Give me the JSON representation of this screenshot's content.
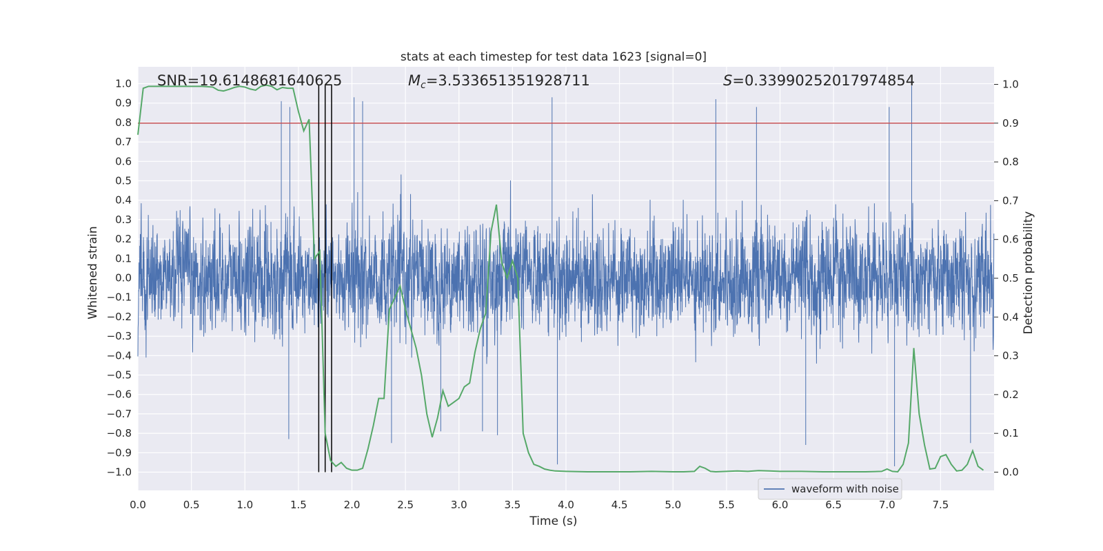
{
  "chart_data": {
    "type": "line",
    "title": "stats at each timestep for test data 1623 [signal=0]",
    "xlabel": "Time (s)",
    "ylabel": "Whitened strain",
    "y2label": "Detection probability",
    "xlim": [
      0.0,
      8.0
    ],
    "ylim": [
      -1.1,
      1.1
    ],
    "y2lim": [
      -0.05,
      1.05
    ],
    "xticks": [
      "0.0",
      "0.5",
      "1.0",
      "1.5",
      "2.0",
      "2.5",
      "3.0",
      "3.5",
      "4.0",
      "4.5",
      "5.0",
      "5.5",
      "6.0",
      "6.5",
      "7.0",
      "7.5"
    ],
    "yticks": [
      "1.0",
      "0.9",
      "0.8",
      "0.7",
      "0.6",
      "0.5",
      "0.4",
      "0.3",
      "0.2",
      "0.1",
      "0.0",
      "−0.1",
      "−0.2",
      "−0.3",
      "−0.4",
      "−0.5",
      "−0.6",
      "−0.7",
      "−0.8",
      "−0.9",
      "−1.0"
    ],
    "y2ticks": [
      "1.0",
      "0.9",
      "0.8",
      "0.7",
      "0.6",
      "0.5",
      "0.4",
      "0.3",
      "0.2",
      "0.1",
      "0.0"
    ],
    "grid": true,
    "legend": {
      "placement": "bottom-right",
      "entries": [
        "waveform with noise"
      ]
    },
    "annotations": {
      "snr": "SNR=19.6148681640625",
      "mc_symbol": "M",
      "mc_sub": "c",
      "mc_value": "=3.533651351928711",
      "s_symbol": "S",
      "s_value": "=0.33990252017974854"
    },
    "threshold_y2": 0.9,
    "vertical_markers_x": [
      1.69,
      1.75,
      1.81
    ],
    "series": [
      {
        "name": "waveform with noise",
        "color": "#4c72b0",
        "noise_envelope": {
          "typical_abs": 0.35,
          "peak_abs": 1.0
        },
        "notable_peaks": [
          {
            "x": 1.34,
            "y": 0.91
          },
          {
            "x": 1.42,
            "y": 0.88
          },
          {
            "x": 1.41,
            "y": -0.83
          },
          {
            "x": 2.02,
            "y": 0.93
          },
          {
            "x": 2.1,
            "y": 0.91
          },
          {
            "x": 2.37,
            "y": -0.85
          },
          {
            "x": 2.83,
            "y": -0.79
          },
          {
            "x": 3.22,
            "y": -0.79
          },
          {
            "x": 3.36,
            "y": -0.81
          },
          {
            "x": 3.87,
            "y": 0.93
          },
          {
            "x": 3.92,
            "y": -0.96
          },
          {
            "x": 5.4,
            "y": 0.92
          },
          {
            "x": 5.78,
            "y": 0.88
          },
          {
            "x": 6.24,
            "y": -0.86
          },
          {
            "x": 7.02,
            "y": 0.88
          },
          {
            "x": 7.07,
            "y": -0.97
          },
          {
            "x": 7.23,
            "y": 0.99
          },
          {
            "x": 7.78,
            "y": -0.85
          }
        ]
      },
      {
        "name": "detection probability",
        "color": "#55a868",
        "axis": "y2",
        "x": [
          0.0,
          0.05,
          0.1,
          0.2,
          0.3,
          0.4,
          0.5,
          0.6,
          0.7,
          0.75,
          0.8,
          0.85,
          0.9,
          0.95,
          1.0,
          1.05,
          1.1,
          1.15,
          1.2,
          1.25,
          1.3,
          1.35,
          1.4,
          1.45,
          1.5,
          1.55,
          1.6,
          1.65,
          1.7,
          1.75,
          1.8,
          1.85,
          1.9,
          1.95,
          2.0,
          2.05,
          2.1,
          2.15,
          2.2,
          2.25,
          2.3,
          2.35,
          2.4,
          2.45,
          2.5,
          2.55,
          2.6,
          2.65,
          2.7,
          2.75,
          2.8,
          2.85,
          2.9,
          2.95,
          3.0,
          3.05,
          3.1,
          3.15,
          3.2,
          3.25,
          3.3,
          3.35,
          3.4,
          3.45,
          3.5,
          3.55,
          3.6,
          3.65,
          3.7,
          3.75,
          3.8,
          3.85,
          3.9,
          4.0,
          4.2,
          4.4,
          4.6,
          4.8,
          5.0,
          5.1,
          5.2,
          5.25,
          5.3,
          5.35,
          5.4,
          5.5,
          5.6,
          5.7,
          5.8,
          5.9,
          6.0,
          6.2,
          6.4,
          6.6,
          6.8,
          6.95,
          7.0,
          7.05,
          7.1,
          7.15,
          7.2,
          7.25,
          7.3,
          7.35,
          7.4,
          7.45,
          7.5,
          7.55,
          7.6,
          7.65,
          7.7,
          7.75,
          7.8,
          7.85,
          7.9
        ],
        "values": [
          0.87,
          0.99,
          0.995,
          0.995,
          0.995,
          0.995,
          0.995,
          0.995,
          0.993,
          0.985,
          0.983,
          0.987,
          0.992,
          0.995,
          0.993,
          0.988,
          0.985,
          0.995,
          0.998,
          0.995,
          0.986,
          0.992,
          0.99,
          0.99,
          0.93,
          0.88,
          0.91,
          0.55,
          0.57,
          0.1,
          0.03,
          0.015,
          0.025,
          0.01,
          0.005,
          0.005,
          0.01,
          0.06,
          0.12,
          0.19,
          0.19,
          0.42,
          0.45,
          0.48,
          0.42,
          0.37,
          0.32,
          0.25,
          0.15,
          0.09,
          0.14,
          0.21,
          0.17,
          0.18,
          0.19,
          0.22,
          0.23,
          0.31,
          0.37,
          0.41,
          0.62,
          0.69,
          0.54,
          0.5,
          0.545,
          0.5,
          0.1,
          0.05,
          0.02,
          0.015,
          0.008,
          0.005,
          0.003,
          0.002,
          0.001,
          0.001,
          0.001,
          0.002,
          0.001,
          0.001,
          0.002,
          0.015,
          0.01,
          0.002,
          0.001,
          0.002,
          0.003,
          0.002,
          0.004,
          0.003,
          0.002,
          0.002,
          0.001,
          0.001,
          0.001,
          0.002,
          0.008,
          0.002,
          0.001,
          0.02,
          0.075,
          0.32,
          0.15,
          0.07,
          0.008,
          0.01,
          0.04,
          0.045,
          0.02,
          0.003,
          0.005,
          0.02,
          0.055,
          0.015,
          0.005
        ]
      }
    ]
  }
}
